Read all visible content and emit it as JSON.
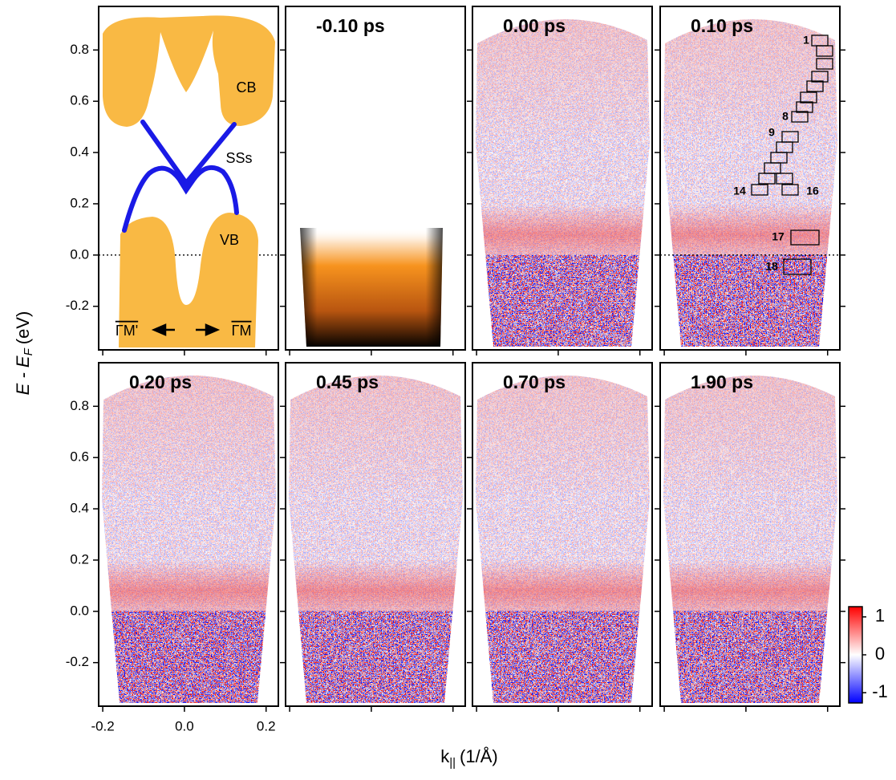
{
  "chart_data": {
    "type": "arpes-panels",
    "y_label": {
      "text": "E - E",
      "subscript": "F",
      "unit": "(eV)"
    },
    "x_label": {
      "text": "k",
      "subscript": "||",
      "unit": "(1/Å)"
    },
    "ylim": [
      -0.37,
      0.97
    ],
    "yticks": [
      -0.2,
      {
        "value": 0,
        "label": "0.0"
      },
      0.2,
      0.4,
      0.6,
      0.8
    ],
    "xlim": [
      -0.21,
      0.23
    ],
    "xticks": [
      -0.2,
      {
        "value": 0,
        "label": "0.0"
      },
      0.2
    ],
    "fermi_level": 0,
    "schematic_labels": {
      "cb": "CB",
      "sss": "SSs",
      "vb": "VB",
      "left": "ΓM'",
      "right": "ΓM"
    },
    "box_labels": [
      "1",
      "8",
      "9",
      "14",
      "16",
      "17",
      "18"
    ],
    "panels": [
      {
        "title": "-0.10 ps",
        "colormap": "orange-black"
      },
      {
        "title": "0.00 ps",
        "colormap": "red-blue"
      },
      {
        "title": "0.10 ps",
        "colormap": "red-blue",
        "fermi_line": true
      },
      {
        "title": "0.20 ps",
        "colormap": "red-blue"
      },
      {
        "title": "0.45 ps",
        "colormap": "red-blue"
      },
      {
        "title": "0.70 ps",
        "colormap": "red-blue"
      },
      {
        "title": "1.90 ps",
        "colormap": "red-blue"
      }
    ],
    "colorbar": {
      "lim": [
        -1.27,
        1.27
      ],
      "ticks": [
        1,
        0,
        -1
      ],
      "colors": [
        "#0000ff",
        "#ffffff",
        "#ff0000"
      ]
    }
  }
}
